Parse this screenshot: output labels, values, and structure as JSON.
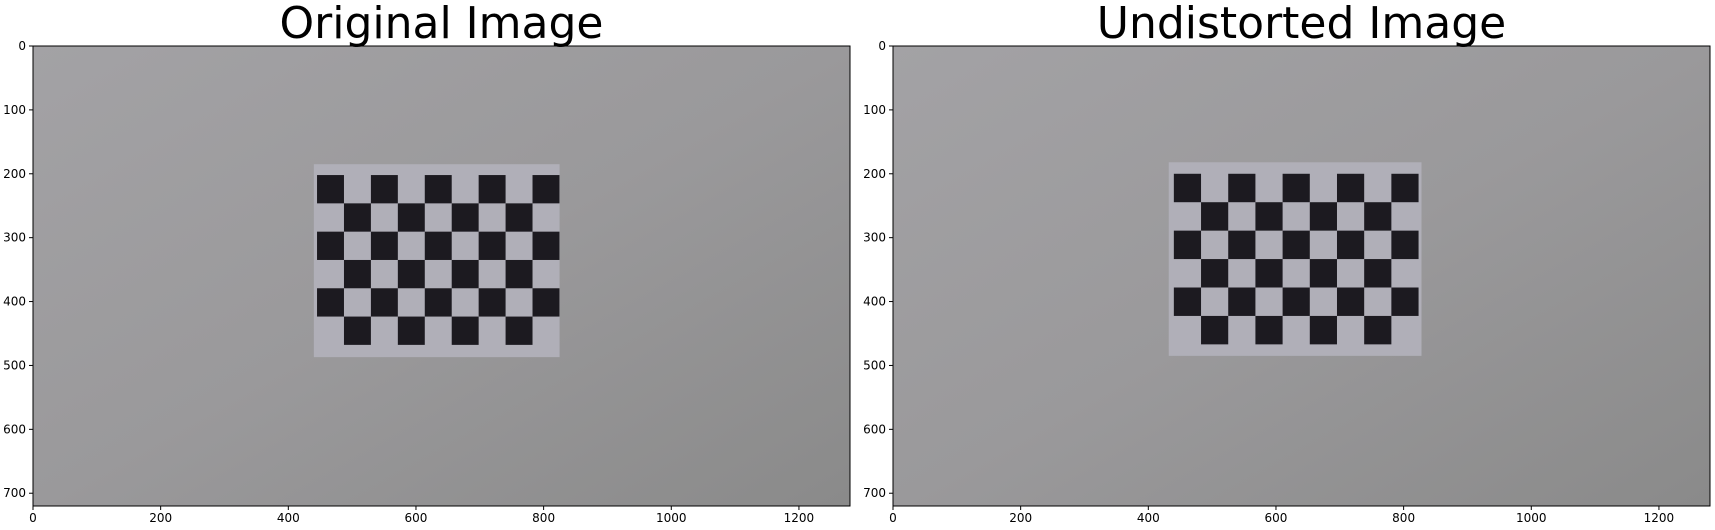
{
  "chart_data": [
    {
      "type": "image",
      "title": "Original Image",
      "xlim": [
        0,
        1280
      ],
      "ylim": [
        720,
        0
      ],
      "xticks": [
        0,
        200,
        400,
        600,
        800,
        1000,
        1200
      ],
      "yticks": [
        0,
        100,
        200,
        300,
        400,
        500,
        600,
        700
      ]
    },
    {
      "type": "image",
      "title": "Undistorted Image",
      "xlim": [
        0,
        1280
      ],
      "ylim": [
        720,
        0
      ],
      "xticks": [
        0,
        200,
        400,
        600,
        800,
        1000,
        1200
      ],
      "yticks": [
        0,
        100,
        200,
        300,
        400,
        500,
        600,
        700
      ]
    }
  ]
}
